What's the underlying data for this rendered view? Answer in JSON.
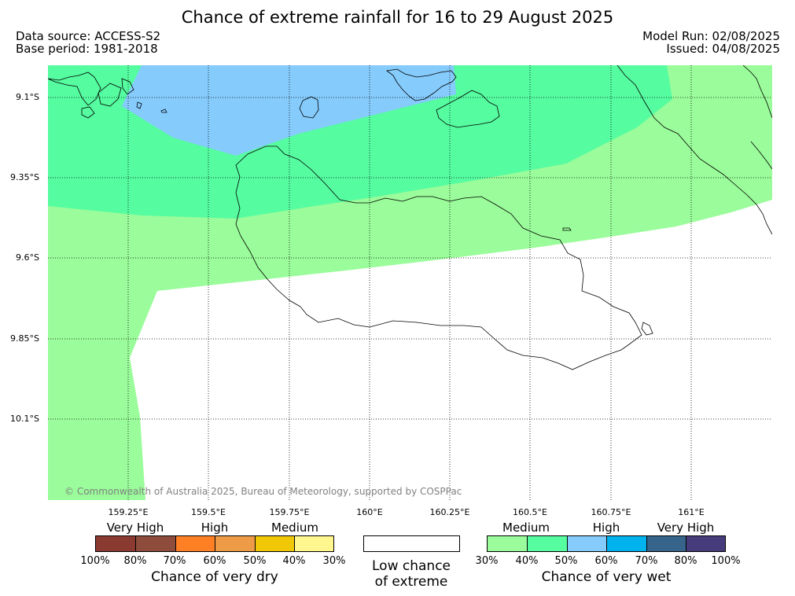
{
  "title": "Chance of extreme rainfall for 16 to 29 August 2025",
  "header_left": {
    "data_source": "Data source: ACCESS-S2",
    "base_period": "Base period: 1981-2018"
  },
  "header_right": {
    "model_run": "Model Run: 02/08/2025",
    "issued": "Issued: 04/08/2025"
  },
  "map": {
    "lat_labels": [
      "9.1°S",
      "9.35°S",
      "9.6°S",
      "9.85°S",
      "10.1°S"
    ],
    "lon_labels": [
      "159.25°E",
      "159.5°E",
      "159.75°E",
      "160°E",
      "160.25°E",
      "160.5°E",
      "160.75°E",
      "161°E"
    ],
    "copyright": "© Commonwealth of Australia 2025, Bureau of Meteorology, supported by COSPPac",
    "zone_colors": {
      "medium_wet": "#9afc9a",
      "high_wet": "#55fca0",
      "very_high_wet": "#85cbfc",
      "coast": "#000000"
    }
  },
  "legend_dry": {
    "categories": [
      "Very High",
      "High",
      "Medium"
    ],
    "colors": [
      "#8b3a32",
      "#8d4c3c",
      "#ff7f24",
      "#ee9b48",
      "#f0c808",
      "#fff68f"
    ],
    "ticks": [
      "100%",
      "80%",
      "70%",
      "60%",
      "50%",
      "40%",
      "30%"
    ],
    "label": "Chance of very dry"
  },
  "legend_neutral": {
    "color": "#ffffff",
    "label_line1": "Low chance",
    "label_line2": "of extreme"
  },
  "legend_wet": {
    "categories": [
      "Medium",
      "High",
      "Very High"
    ],
    "colors": [
      "#9afc9a",
      "#55fca0",
      "#85cbfc",
      "#00b2ee",
      "#36648b",
      "#473c7b"
    ],
    "ticks": [
      "30%",
      "40%",
      "50%",
      "60%",
      "70%",
      "80%",
      "100%"
    ],
    "label": "Chance of very wet"
  }
}
